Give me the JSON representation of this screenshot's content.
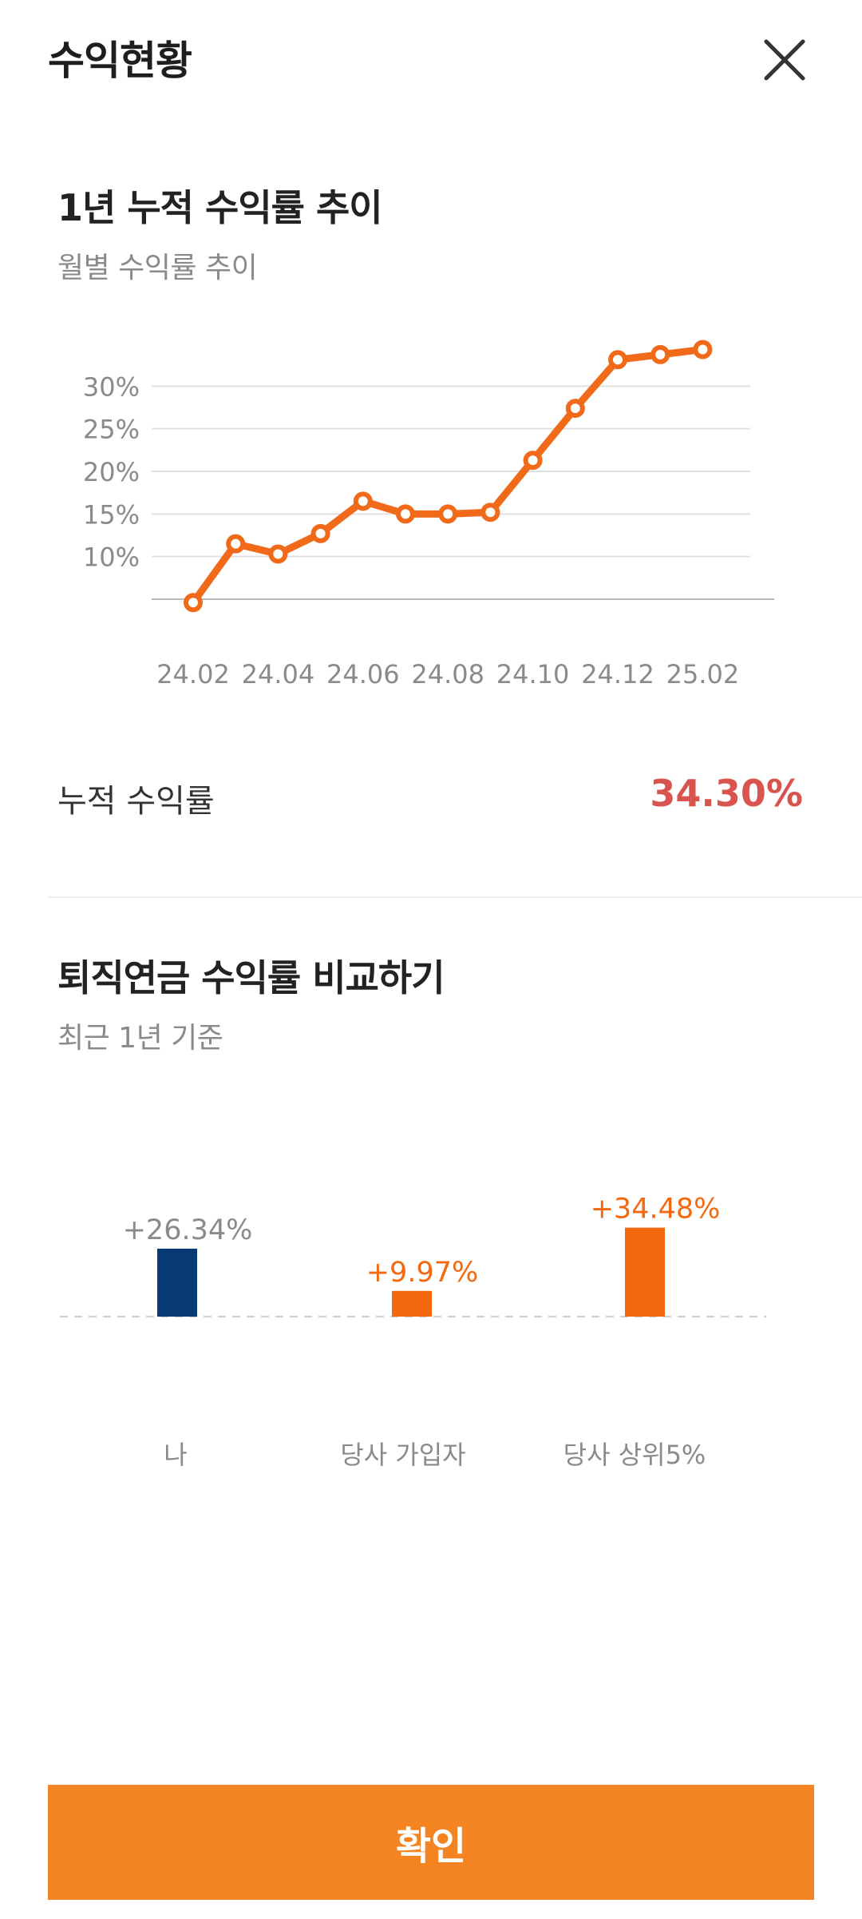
{
  "header": {
    "title": "수익현황",
    "close_icon": "close-icon"
  },
  "trend": {
    "title": "1년 누적 수익률 추이",
    "subtitle": "월별 수익률 추이",
    "summary_label": "누적 수익률",
    "summary_value": "34.30%"
  },
  "comparison": {
    "title": "퇴직연금 수익률 비교하기",
    "subtitle": "최근 1년 기준"
  },
  "chart_data": [
    {
      "type": "line",
      "x": [
        "24.02",
        "24.03",
        "24.04",
        "24.05",
        "24.06",
        "24.07",
        "24.08",
        "24.09",
        "24.10",
        "24.11",
        "24.12",
        "25.01",
        "25.02"
      ],
      "x_tick_labels": [
        "24.02",
        "24.04",
        "24.06",
        "24.08",
        "24.10",
        "24.12",
        "25.02"
      ],
      "series": [
        {
          "values": [
            4.6,
            11.5,
            10.3,
            12.7,
            16.5,
            15.0,
            15.0,
            15.2,
            21.3,
            27.4,
            33.1,
            33.7,
            34.3
          ],
          "color": "#f06a19"
        }
      ],
      "y_tick_labels": [
        "10%",
        "15%",
        "20%",
        "25%",
        "30%"
      ],
      "y_ticks": [
        10,
        15,
        20,
        25,
        30
      ],
      "ylim": [
        5,
        35
      ],
      "grid": true,
      "axis_color": "#bbbbbb",
      "grid_color": "#e0e0e0"
    },
    {
      "type": "bar",
      "categories": [
        "나",
        "당사 가입자",
        "당사 상위5%"
      ],
      "values": [
        26.34,
        9.97,
        34.48
      ],
      "value_labels": [
        "+26.34%",
        "+9.97%",
        "+34.48%"
      ],
      "colors": [
        "#073a72",
        "#f4680f",
        "#f4680f"
      ],
      "label_colors": [
        "#8a8a8a",
        "#f4680f",
        "#f4680f"
      ],
      "baseline": "dashed"
    }
  ],
  "footer": {
    "confirm_label": "확인"
  }
}
